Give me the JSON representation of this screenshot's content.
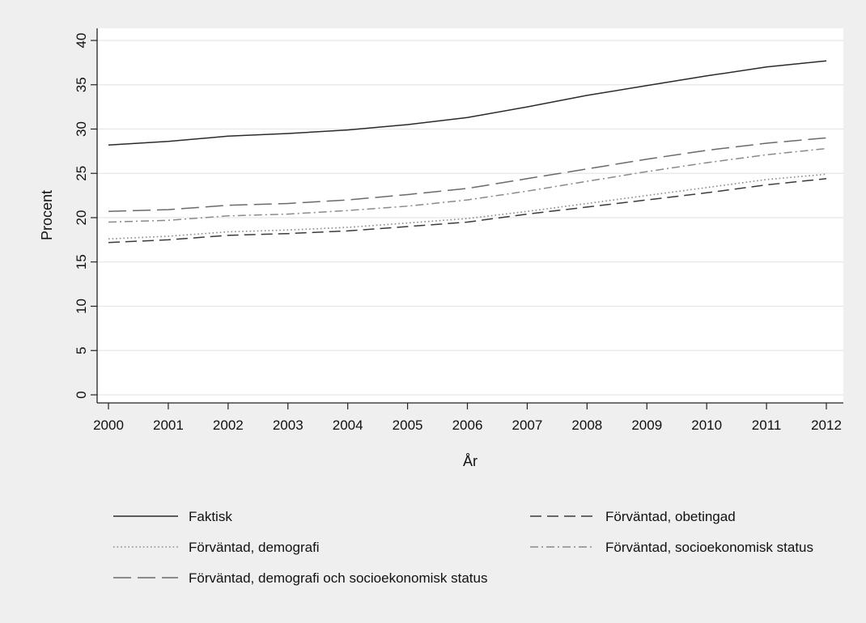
{
  "chart_data": {
    "type": "line",
    "title": "",
    "xlabel": "År",
    "ylabel": "Procent",
    "x": [
      2000,
      2001,
      2002,
      2003,
      2004,
      2005,
      2006,
      2007,
      2008,
      2009,
      2010,
      2011,
      2012
    ],
    "xlim": [
      2000,
      2012
    ],
    "ylim": [
      0,
      40
    ],
    "yticks": [
      0,
      5,
      10,
      15,
      20,
      25,
      30,
      35,
      40
    ],
    "grid": true,
    "legend_position": "bottom",
    "series": [
      {
        "name": "Faktisk",
        "color": "#2a2a2a",
        "style": "solid",
        "values": [
          28.2,
          28.6,
          29.2,
          29.5,
          29.9,
          30.5,
          31.3,
          32.5,
          33.8,
          34.9,
          36.0,
          37.0,
          37.7
        ]
      },
      {
        "name": "Förväntad, obetingad",
        "color": "#3a3a3a",
        "style": "dash",
        "values": [
          17.2,
          17.5,
          18.0,
          18.2,
          18.5,
          19.0,
          19.5,
          20.4,
          21.2,
          22.0,
          22.8,
          23.7,
          24.4
        ]
      },
      {
        "name": "Förväntad, demografi",
        "color": "#8a8a8a",
        "style": "dot",
        "values": [
          17.6,
          17.9,
          18.4,
          18.6,
          18.9,
          19.4,
          19.9,
          20.7,
          21.6,
          22.5,
          23.4,
          24.3,
          24.9
        ]
      },
      {
        "name": "Förväntad, socioekonomisk status",
        "color": "#8a8a8a",
        "style": "dashdot",
        "values": [
          19.5,
          19.7,
          20.2,
          20.4,
          20.8,
          21.3,
          22.0,
          23.0,
          24.1,
          25.2,
          26.2,
          27.1,
          27.8
        ]
      },
      {
        "name": "Förväntad, demografi och socioekonomisk status",
        "color": "#6a6a6a",
        "style": "longdash",
        "values": [
          20.7,
          20.9,
          21.4,
          21.6,
          22.0,
          22.6,
          23.3,
          24.4,
          25.5,
          26.6,
          27.6,
          28.4,
          29.0
        ]
      }
    ]
  }
}
